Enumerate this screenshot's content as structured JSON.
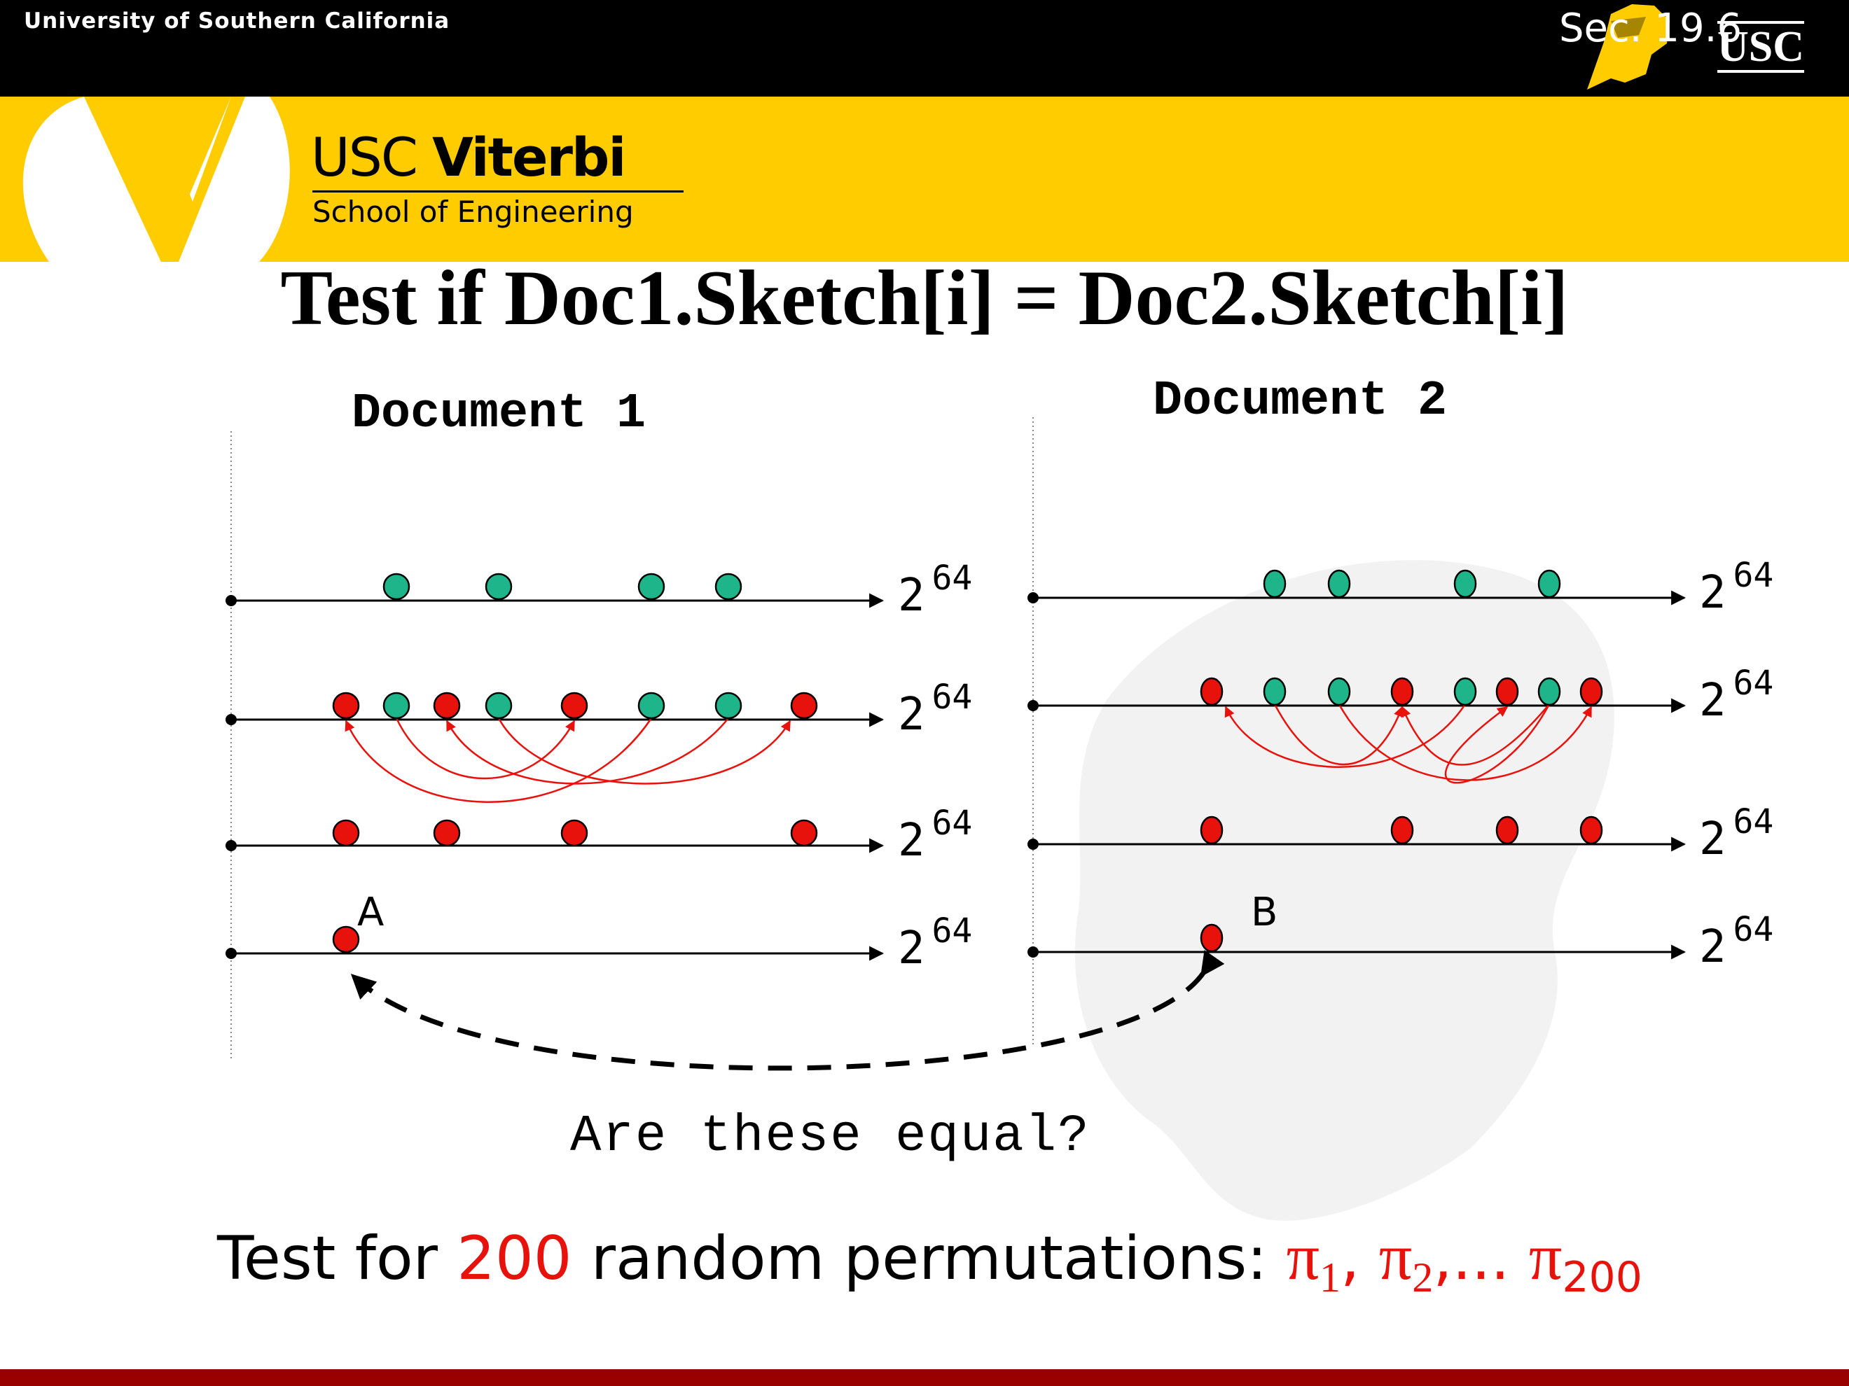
{
  "header": {
    "university": "University of Southern California",
    "section": "Sec. 19.6",
    "logo_text": "USC",
    "school_line1_light": "USC ",
    "school_line1_bold": "Viterbi",
    "school_line2": "School of Engineering"
  },
  "title": "Test if Doc1.Sketch[i] = Doc2.Sketch[i]",
  "doc1": {
    "label": "Document 1"
  },
  "doc2": {
    "label": "Document 2"
  },
  "axis_end_label": {
    "base": "2",
    "exp": "64"
  },
  "marker_a": "A",
  "marker_b": "B",
  "question": "Are these equal?",
  "bottom": {
    "prefix": "Test for ",
    "count": "200",
    "middle": " random permutations: ",
    "pi": "π",
    "sub1": "1",
    "sep1": ", ",
    "sub2": "2",
    "sep2": ",... ",
    "sub3": "200"
  },
  "colors": {
    "red_dot": "#e8120c",
    "teal_dot": "#1db589",
    "yellow": "#ffcc00",
    "black": "#000000",
    "footer": "#990000"
  }
}
